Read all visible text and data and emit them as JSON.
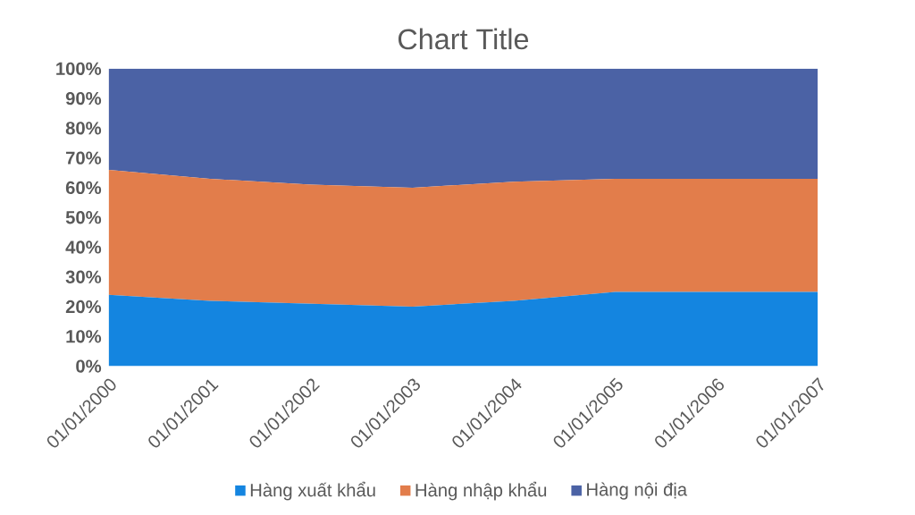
{
  "chart_data": {
    "type": "area",
    "title": "Chart Title",
    "categories": [
      "01/01/2000",
      "01/01/2001",
      "01/01/2002",
      "01/01/2003",
      "01/01/2004",
      "01/01/2005",
      "01/01/2006",
      "01/01/2007"
    ],
    "series": [
      {
        "name": "Hàng xuất khẩu",
        "color": "#1485e0",
        "values": [
          24,
          22,
          21,
          20,
          22,
          25,
          25,
          25
        ]
      },
      {
        "name": "Hàng nhập khẩu",
        "color": "#e27d4b",
        "values": [
          42,
          41,
          40,
          40,
          40,
          38,
          38,
          38
        ]
      },
      {
        "name": "Hàng nội địa",
        "color": "#4b62a5",
        "values": [
          34,
          37,
          39,
          40,
          38,
          37,
          37,
          37
        ]
      }
    ],
    "stacked": true,
    "ylim": [
      0,
      100
    ],
    "yticks": [
      {
        "value": 0,
        "label": "0%"
      },
      {
        "value": 10,
        "label": "10%"
      },
      {
        "value": 20,
        "label": "20%"
      },
      {
        "value": 30,
        "label": "30%"
      },
      {
        "value": 40,
        "label": "40%"
      },
      {
        "value": 50,
        "label": "50%"
      },
      {
        "value": 60,
        "label": "60%"
      },
      {
        "value": 70,
        "label": "70%"
      },
      {
        "value": 80,
        "label": "80%"
      },
      {
        "value": 90,
        "label": "90%"
      },
      {
        "value": 100,
        "label": "100%"
      }
    ],
    "legend": "bottom"
  }
}
